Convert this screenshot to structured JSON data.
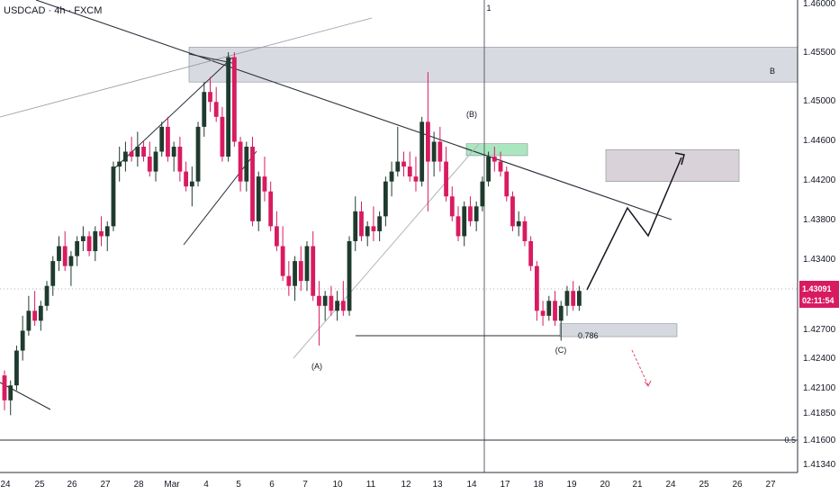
{
  "header": {
    "symbol_line": "USDCAD · 4h · FXCM"
  },
  "colors": {
    "up": "#1f3b2e",
    "down": "#d81b60",
    "zone_fill": "#d1d4dc",
    "target_fill": "#d7d0d6",
    "green_zone": "#a5e6bd",
    "price_tag": "#d81b60",
    "trend": "#2a2e39",
    "vertical": "#5d606b",
    "axis_line": "#2a2e39"
  },
  "labels": {
    "vertical_marker": "1",
    "zone_b": "B",
    "wave_a": "(A)",
    "wave_b": "(B)",
    "wave_c": "(C)",
    "fib_label": "0.786",
    "half_label": "0.5"
  },
  "price_tag": {
    "price": "1.43091",
    "countdown": "02:11:54"
  },
  "chart_data": {
    "type": "candlestick",
    "title": "USDCAD · 4h · FXCM",
    "y_ticks": [
      "1.46000",
      "1.45500",
      "1.45000",
      "1.44600",
      "1.44200",
      "1.43800",
      "1.43400",
      "1.42700",
      "1.42400",
      "1.42100",
      "1.41850",
      "1.41600",
      "1.41340"
    ],
    "x_ticks": [
      "24",
      "25",
      "26",
      "27",
      "28",
      "Mar",
      "4",
      "5",
      "6",
      "7",
      "10",
      "11",
      "12",
      "13",
      "14",
      "17",
      "18",
      "19",
      "20",
      "21",
      "24",
      "25",
      "26",
      "27"
    ],
    "ohlc": [
      [
        1.4225,
        1.423,
        1.419,
        1.42
      ],
      [
        1.42,
        1.422,
        1.4185,
        1.4215
      ],
      [
        1.4215,
        1.4255,
        1.421,
        1.425
      ],
      [
        1.425,
        1.4285,
        1.424,
        1.427
      ],
      [
        1.427,
        1.4305,
        1.4265,
        1.429
      ],
      [
        1.429,
        1.431,
        1.4275,
        1.428
      ],
      [
        1.428,
        1.43,
        1.427,
        1.4295
      ],
      [
        1.4295,
        1.432,
        1.429,
        1.4315
      ],
      [
        1.4315,
        1.4345,
        1.4305,
        1.434
      ],
      [
        1.434,
        1.4365,
        1.433,
        1.4355
      ],
      [
        1.4355,
        1.437,
        1.433,
        1.4335
      ],
      [
        1.4335,
        1.435,
        1.4315,
        1.4345
      ],
      [
        1.4345,
        1.4365,
        1.4335,
        1.436
      ],
      [
        1.436,
        1.4375,
        1.435,
        1.4365
      ],
      [
        1.4365,
        1.437,
        1.4345,
        1.435
      ],
      [
        1.435,
        1.4375,
        1.434,
        1.437
      ],
      [
        1.437,
        1.4385,
        1.4355,
        1.4365
      ],
      [
        1.4365,
        1.438,
        1.435,
        1.4375
      ],
      [
        1.4375,
        1.444,
        1.437,
        1.4435
      ],
      [
        1.4435,
        1.4455,
        1.442,
        1.444
      ],
      [
        1.444,
        1.446,
        1.443,
        1.445
      ],
      [
        1.445,
        1.4465,
        1.444,
        1.4445
      ],
      [
        1.4445,
        1.447,
        1.4435,
        1.4455
      ],
      [
        1.4455,
        1.446,
        1.444,
        1.4445
      ],
      [
        1.4445,
        1.446,
        1.4425,
        1.443
      ],
      [
        1.443,
        1.4455,
        1.442,
        1.445
      ],
      [
        1.445,
        1.448,
        1.4445,
        1.4475
      ],
      [
        1.4475,
        1.4485,
        1.444,
        1.4445
      ],
      [
        1.4445,
        1.446,
        1.443,
        1.4455
      ],
      [
        1.4455,
        1.4465,
        1.442,
        1.443
      ],
      [
        1.443,
        1.444,
        1.441,
        1.4415
      ],
      [
        1.4415,
        1.4435,
        1.4395,
        1.442
      ],
      [
        1.442,
        1.448,
        1.4415,
        1.4475
      ],
      [
        1.4475,
        1.452,
        1.4465,
        1.451
      ],
      [
        1.451,
        1.4525,
        1.449,
        1.45
      ],
      [
        1.45,
        1.4515,
        1.448,
        1.4485
      ],
      [
        1.4485,
        1.4495,
        1.444,
        1.4445
      ],
      [
        1.4445,
        1.455,
        1.444,
        1.4545
      ],
      [
        1.4545,
        1.455,
        1.4455,
        1.446
      ],
      [
        1.446,
        1.4465,
        1.441,
        1.442
      ],
      [
        1.442,
        1.446,
        1.441,
        1.4455
      ],
      [
        1.4455,
        1.4465,
        1.4375,
        1.438
      ],
      [
        1.438,
        1.443,
        1.437,
        1.4425
      ],
      [
        1.4425,
        1.4445,
        1.44,
        1.441
      ],
      [
        1.441,
        1.442,
        1.437,
        1.4375
      ],
      [
        1.4375,
        1.439,
        1.435,
        1.4355
      ],
      [
        1.4355,
        1.4375,
        1.432,
        1.4325
      ],
      [
        1.4325,
        1.434,
        1.4305,
        1.4315
      ],
      [
        1.4315,
        1.4345,
        1.43,
        1.434
      ],
      [
        1.434,
        1.4355,
        1.431,
        1.432
      ],
      [
        1.432,
        1.436,
        1.431,
        1.4355
      ],
      [
        1.4355,
        1.437,
        1.43,
        1.4305
      ],
      [
        1.4305,
        1.432,
        1.4255,
        1.4295
      ],
      [
        1.4295,
        1.431,
        1.428,
        1.4305
      ],
      [
        1.4305,
        1.4315,
        1.4285,
        1.429
      ],
      [
        1.429,
        1.431,
        1.428,
        1.43
      ],
      [
        1.43,
        1.432,
        1.4285,
        1.429
      ],
      [
        1.429,
        1.4365,
        1.4285,
        1.436
      ],
      [
        1.436,
        1.4405,
        1.435,
        1.439
      ],
      [
        1.439,
        1.44,
        1.436,
        1.4365
      ],
      [
        1.4365,
        1.438,
        1.4355,
        1.4375
      ],
      [
        1.4375,
        1.4395,
        1.436,
        1.437
      ],
      [
        1.437,
        1.439,
        1.436,
        1.4385
      ],
      [
        1.4385,
        1.4425,
        1.4375,
        1.442
      ],
      [
        1.442,
        1.444,
        1.4405,
        1.443
      ],
      [
        1.443,
        1.4475,
        1.4425,
        1.444
      ],
      [
        1.444,
        1.445,
        1.4425,
        1.4435
      ],
      [
        1.4435,
        1.445,
        1.442,
        1.4425
      ],
      [
        1.4425,
        1.4445,
        1.441,
        1.442
      ],
      [
        1.442,
        1.4485,
        1.4415,
        1.448
      ],
      [
        1.448,
        1.453,
        1.439,
        1.444
      ],
      [
        1.444,
        1.447,
        1.4425,
        1.446
      ],
      [
        1.446,
        1.4475,
        1.443,
        1.444
      ],
      [
        1.444,
        1.4455,
        1.44,
        1.4405
      ],
      [
        1.4405,
        1.4415,
        1.438,
        1.4385
      ],
      [
        1.4385,
        1.4395,
        1.436,
        1.4365
      ],
      [
        1.4365,
        1.44,
        1.4355,
        1.4395
      ],
      [
        1.4395,
        1.4405,
        1.4375,
        1.438
      ],
      [
        1.438,
        1.44,
        1.437,
        1.4395
      ],
      [
        1.4395,
        1.4425,
        1.439,
        1.442
      ],
      [
        1.442,
        1.445,
        1.4415,
        1.4445
      ],
      [
        1.4445,
        1.4455,
        1.443,
        1.444
      ],
      [
        1.444,
        1.445,
        1.4425,
        1.443
      ],
      [
        1.443,
        1.4435,
        1.44,
        1.4405
      ],
      [
        1.4405,
        1.441,
        1.437,
        1.4375
      ],
      [
        1.4375,
        1.439,
        1.4365,
        1.438
      ],
      [
        1.438,
        1.4385,
        1.4355,
        1.436
      ],
      [
        1.436,
        1.4365,
        1.433,
        1.4335
      ],
      [
        1.4335,
        1.434,
        1.428,
        1.429
      ],
      [
        1.429,
        1.43,
        1.4275,
        1.4285
      ],
      [
        1.4285,
        1.4305,
        1.428,
        1.43
      ],
      [
        1.43,
        1.431,
        1.4275,
        1.428
      ],
      [
        1.428,
        1.43,
        1.426,
        1.4295
      ],
      [
        1.4295,
        1.4315,
        1.4285,
        1.431
      ],
      [
        1.431,
        1.432,
        1.429,
        1.4295
      ],
      [
        1.4295,
        1.4315,
        1.429,
        1.431
      ]
    ],
    "zones": [
      {
        "name": "resistance",
        "from": 1.452,
        "to": 1.4555
      },
      {
        "name": "target",
        "from": 1.442,
        "to": 1.4452
      },
      {
        "name": "fib",
        "from": 1.4264,
        "to": 1.4277
      },
      {
        "name": "green",
        "from": 1.4446,
        "to": 1.4458
      }
    ],
    "grid": false
  }
}
